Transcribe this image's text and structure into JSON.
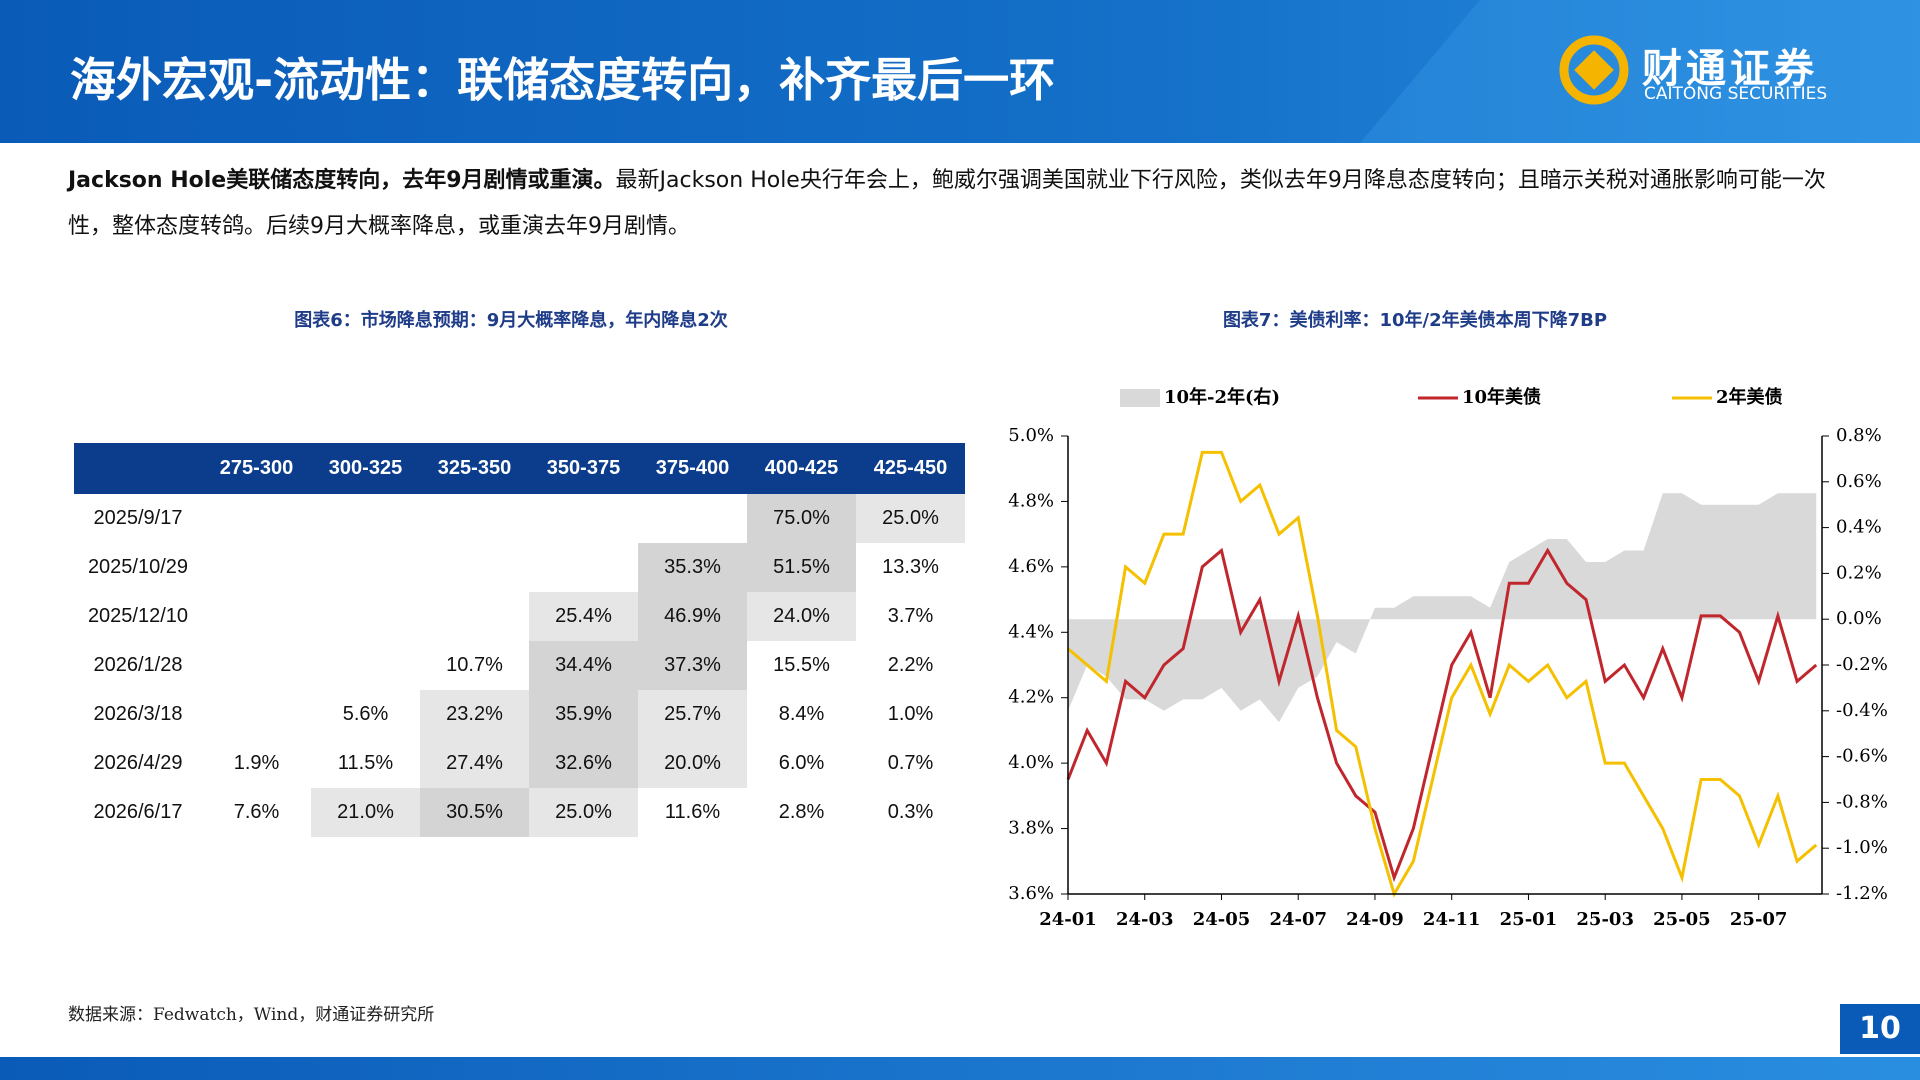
{
  "header": {
    "title": "海外宏观-流动性：联储态度转向，补齐最后一环",
    "logo_cn": "财通证券",
    "logo_en": "CAITONG SECURITIES"
  },
  "body": {
    "bold": "Jackson Hole美联储态度转向，去年9月剧情或重演。",
    "text": "最新Jackson Hole央行年会上，鲍威尔强调美国就业下行风险，类似去年9月降息态度转向；且暗示关税对通胀影响可能一次性，整体态度转鸽。后续9月大概率降息，或重演去年9月剧情。"
  },
  "table": {
    "title": "图表6：市场降息预期：9月大概率降息，年内降息2次",
    "header": [
      "275-300",
      "300-325",
      "325-350",
      "350-375",
      "375-400",
      "400-425",
      "425-450"
    ],
    "rows": [
      [
        "2025/9/17",
        null,
        null,
        null,
        null,
        null,
        "75.0%",
        "25.0%"
      ],
      [
        "2025/10/29",
        null,
        null,
        null,
        null,
        "35.3%",
        "51.5%",
        "13.3%"
      ],
      [
        "2025/12/10",
        null,
        null,
        null,
        "25.4%",
        "46.9%",
        "24.0%",
        "3.7%"
      ],
      [
        "2026/1/28",
        null,
        null,
        "10.7%",
        "34.4%",
        "37.3%",
        "15.5%",
        "2.2%"
      ],
      [
        "2026/3/18",
        null,
        "5.6%",
        "23.2%",
        "35.9%",
        "25.7%",
        "8.4%",
        "1.0%"
      ],
      [
        "2026/4/29",
        "1.9%",
        "11.5%",
        "27.4%",
        "32.6%",
        "20.0%",
        "6.0%",
        "0.7%"
      ],
      [
        "2026/6/17",
        "7.6%",
        "21.0%",
        "30.5%",
        "25.0%",
        "11.6%",
        "2.8%",
        "0.3%"
      ]
    ]
  },
  "chart_data": {
    "type": "line",
    "title": "图表7：美债利率：10年/2年美债本周下降7BP",
    "categories": [
      "24-01",
      null,
      null,
      null,
      "24-03",
      null,
      null,
      null,
      "24-05",
      null,
      null,
      null,
      "24-07",
      null,
      null,
      null,
      "24-09",
      null,
      null,
      null,
      "24-11",
      null,
      null,
      null,
      "25-01",
      null,
      null,
      null,
      "25-03",
      null,
      null,
      null,
      "25-05",
      null,
      null,
      null,
      "25-07",
      null,
      null,
      null
    ],
    "series": [
      {
        "name": "10年-2年(右)",
        "color": "#d9d9d9",
        "axis": "y2",
        "values": [
          -0.4,
          -0.2,
          -0.25,
          -0.35,
          -0.35,
          -0.4,
          -0.35,
          -0.35,
          -0.3,
          -0.4,
          -0.35,
          -0.45,
          -0.3,
          -0.25,
          -0.1,
          -0.15,
          0.05,
          0.05,
          0.1,
          0.1,
          0.1,
          0.1,
          0.05,
          0.25,
          0.3,
          0.35,
          0.35,
          0.25,
          0.25,
          0.3,
          0.3,
          0.55,
          0.55,
          0.5,
          0.5,
          0.5,
          0.5,
          0.55,
          0.55,
          0.55
        ]
      },
      {
        "name": "10年美债",
        "color": "#c0272d",
        "values": [
          3.95,
          4.1,
          4.0,
          4.25,
          4.2,
          4.3,
          4.35,
          4.6,
          4.65,
          4.4,
          4.5,
          4.25,
          4.45,
          4.2,
          4.0,
          3.9,
          3.85,
          3.65,
          3.8,
          4.05,
          4.3,
          4.4,
          4.2,
          4.55,
          4.55,
          4.65,
          4.55,
          4.5,
          4.25,
          4.3,
          4.2,
          4.35,
          4.2,
          4.45,
          4.45,
          4.4,
          4.25,
          4.45,
          4.25,
          4.3
        ]
      },
      {
        "name": "2年美债",
        "color": "#f5c000",
        "values": [
          4.35,
          4.3,
          4.25,
          4.6,
          4.55,
          4.7,
          4.7,
          4.95,
          4.95,
          4.8,
          4.85,
          4.7,
          4.75,
          4.45,
          4.1,
          4.05,
          3.8,
          3.6,
          3.7,
          3.95,
          4.2,
          4.3,
          4.15,
          4.3,
          4.25,
          4.3,
          4.2,
          4.25,
          4.0,
          4.0,
          3.9,
          3.8,
          3.65,
          3.95,
          3.95,
          3.9,
          3.75,
          3.9,
          3.7,
          3.75
        ]
      }
    ],
    "ylim": [
      3.6,
      5.0
    ],
    "yticks": [
      {
        "value": 3.6,
        "label": "3.6%"
      },
      {
        "value": 3.8,
        "label": "3.8%"
      },
      {
        "value": 4.0,
        "label": "4.0%"
      },
      {
        "value": 4.2,
        "label": "4.2%"
      },
      {
        "value": 4.4,
        "label": "4.4%"
      },
      {
        "value": 4.6,
        "label": "4.6%"
      },
      {
        "value": 4.8,
        "label": "4.8%"
      },
      {
        "value": 5.0,
        "label": "5.0%"
      }
    ],
    "y2lim": [
      -1.2,
      0.8
    ],
    "y2ticks": [
      {
        "value": -1.2,
        "label": "-1.2%"
      },
      {
        "value": -1.0,
        "label": "-1.0%"
      },
      {
        "value": -0.8,
        "label": "-0.8%"
      },
      {
        "value": -0.6,
        "label": "-0.6%"
      },
      {
        "value": -0.4,
        "label": "-0.4%"
      },
      {
        "value": -0.2,
        "label": "-0.2%"
      },
      {
        "value": 0.0,
        "label": "0.0%"
      },
      {
        "value": 0.2,
        "label": "0.2%"
      },
      {
        "value": 0.4,
        "label": "0.4%"
      },
      {
        "value": 0.6,
        "label": "0.6%"
      },
      {
        "value": 0.8,
        "label": "0.8%"
      }
    ],
    "legend": "top",
    "grid": false
  },
  "footer": {
    "source": "数据来源：Fedwatch，Wind，财通证券研究所",
    "page": "10"
  }
}
